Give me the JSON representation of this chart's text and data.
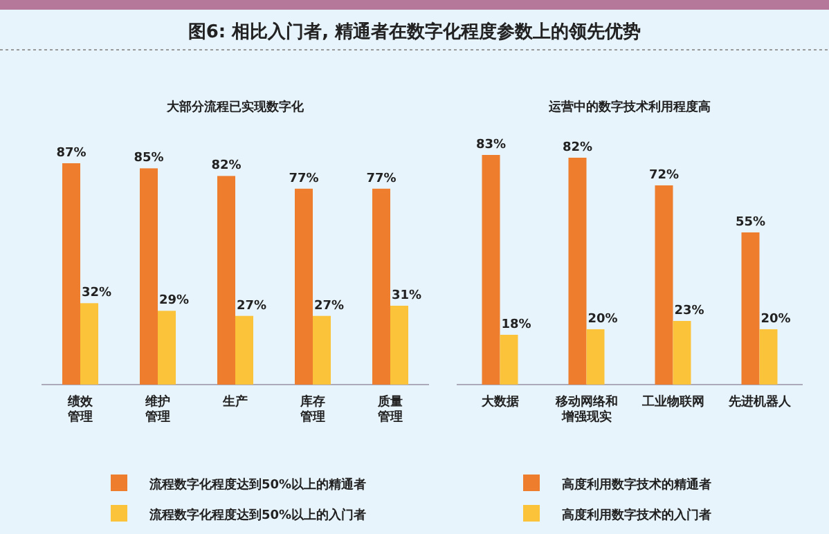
{
  "chart_data": [
    {
      "type": "bar",
      "title": "图6: 相比入门者, 精通者在数字化程度参数上的领先优势",
      "subtitle": "大部分流程已实现数字化",
      "categories": [
        "绩效管理",
        "维护管理",
        "生产",
        "库存管理",
        "质量管理"
      ],
      "series": [
        {
          "name": "流程数字化程度达到50%以上的精通者",
          "color": "#ee7d2d",
          "values": [
            87,
            85,
            82,
            77,
            77
          ],
          "value_labels": [
            "87%",
            "85%",
            "82%",
            "77%",
            "77%"
          ]
        },
        {
          "name": "流程数字化程度达到50%以上的入门者",
          "color": "#fbc33a",
          "values": [
            32,
            29,
            27,
            27,
            31
          ],
          "value_labels": [
            "32%",
            "29%",
            "27%",
            "27%",
            "31%"
          ]
        }
      ],
      "legend": "bottom"
    },
    {
      "type": "bar",
      "subtitle": "运营中的数字技术利用程度高",
      "categories": [
        "大数据",
        "移动网络和增强现实",
        "工业物联网",
        "先进机器人"
      ],
      "series": [
        {
          "name": "高度利用数字技术的精通者",
          "color": "#ee7d2d",
          "values": [
            83,
            82,
            72,
            55
          ],
          "value_labels": [
            "83%",
            "82%",
            "72%",
            "55%"
          ]
        },
        {
          "name": "高度利用数字技术的入门者",
          "color": "#fbc33a",
          "values": [
            18,
            20,
            23,
            20
          ],
          "value_labels": [
            "18%",
            "20%",
            "23%",
            "20%"
          ]
        }
      ],
      "legend": "bottom"
    }
  ]
}
